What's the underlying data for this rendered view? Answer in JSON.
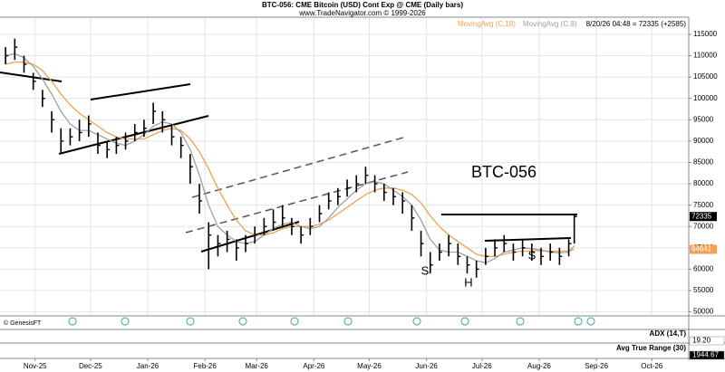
{
  "chart_data": {
    "type": "ohlc",
    "title": "BTC-056:  CME Bitcoin (USD) Cont Exp @ CME  (Daily bars)",
    "subtitle": "www.TradeNavigator.com © 1999-2026",
    "quote": "8/20/26 04:48 = 72335 (+2585)",
    "last_price": 72335,
    "color": "#000000",
    "xlim": [
      12,
      385
    ],
    "xticks": [
      {
        "value": 31,
        "label": "Nov-25"
      },
      {
        "value": 61,
        "label": "Dec-25"
      },
      {
        "value": 92,
        "label": "Jan-26"
      },
      {
        "value": 123,
        "label": "Feb-26"
      },
      {
        "value": 151,
        "label": "Mar-26"
      },
      {
        "value": 182,
        "label": "Apr-26"
      },
      {
        "value": 212,
        "label": "May-26"
      },
      {
        "value": 243,
        "label": "Jun-26"
      },
      {
        "value": 273,
        "label": "Jul-26"
      },
      {
        "value": 304,
        "label": "Aug-26"
      },
      {
        "value": 335,
        "label": "Sep-26"
      },
      {
        "value": 365,
        "label": "Oct-26"
      }
    ],
    "ylim": [
      49000,
      119000
    ],
    "yticks": [
      115000,
      110000,
      105000,
      100000,
      95000,
      90000,
      85000,
      80000,
      75000,
      70000,
      65000,
      60000,
      55000,
      50000
    ],
    "grid": true,
    "x": [
      15,
      20,
      25,
      30,
      35,
      40,
      45,
      50,
      55,
      60,
      65,
      70,
      75,
      80,
      85,
      90,
      95,
      100,
      105,
      110,
      115,
      120,
      125,
      130,
      135,
      140,
      145,
      150,
      155,
      160,
      165,
      170,
      175,
      180,
      185,
      190,
      195,
      200,
      205,
      210,
      215,
      220,
      225,
      230,
      235,
      240,
      245,
      250,
      255,
      260,
      265,
      270,
      275,
      280,
      285,
      290,
      295,
      300,
      305,
      310,
      315,
      320,
      323
    ],
    "high": [
      112000,
      114000,
      110000,
      106000,
      102000,
      97000,
      93000,
      93000,
      95000,
      96000,
      92000,
      90000,
      91000,
      92000,
      94000,
      95000,
      99000,
      97000,
      94000,
      91000,
      87000,
      80000,
      71000,
      68000,
      69000,
      67000,
      68000,
      70000,
      72000,
      74000,
      75000,
      72000,
      70000,
      72000,
      75000,
      78000,
      79000,
      81000,
      82000,
      84000,
      82000,
      80000,
      79000,
      78000,
      75000,
      69000,
      64000,
      66000,
      68000,
      66000,
      63000,
      62000,
      65000,
      67000,
      68000,
      66000,
      67000,
      66000,
      65000,
      66000,
      65000,
      67000,
      73000
    ],
    "low": [
      108000,
      109000,
      106000,
      102000,
      98000,
      92000,
      87000,
      89000,
      90000,
      91000,
      87000,
      86000,
      87000,
      88000,
      90000,
      91000,
      94000,
      92000,
      89000,
      86000,
      80000,
      73000,
      60000,
      63000,
      64000,
      62000,
      64000,
      66000,
      68000,
      69000,
      70000,
      68000,
      66000,
      68000,
      71000,
      74000,
      75000,
      77000,
      78000,
      80000,
      78000,
      76000,
      75000,
      73000,
      69000,
      63000,
      59000,
      62000,
      63000,
      61000,
      59000,
      58000,
      61000,
      63000,
      64000,
      62000,
      63000,
      62000,
      61000,
      62000,
      61000,
      63000,
      66000
    ],
    "close": [
      110000,
      112000,
      108000,
      104000,
      100000,
      95000,
      90000,
      91000,
      92000,
      94000,
      89000,
      88000,
      89000,
      90000,
      92000,
      93000,
      97000,
      95000,
      91000,
      89000,
      84000,
      76000,
      68000,
      66000,
      67000,
      65000,
      66000,
      68000,
      70000,
      71000,
      72000,
      70000,
      68000,
      70000,
      73000,
      76000,
      77000,
      79000,
      80000,
      82000,
      80000,
      78000,
      77000,
      76000,
      72000,
      66000,
      61000,
      64000,
      66000,
      63000,
      61000,
      60000,
      63000,
      65000,
      66000,
      64000,
      65000,
      64000,
      63000,
      64000,
      63000,
      66000,
      72335
    ],
    "series": [
      {
        "name": "MovingAvg (C,18)",
        "color": "#f0a050",
        "last": 64641,
        "values": [
          108000,
          108500,
          108500,
          108000,
          106500,
          104000,
          101000,
          98500,
          96500,
          95000,
          93500,
          92000,
          91000,
          90500,
          90500,
          90500,
          91500,
          92500,
          93000,
          92500,
          90500,
          87500,
          83500,
          79000,
          75000,
          71500,
          69000,
          68000,
          68000,
          68500,
          69500,
          70000,
          70000,
          70000,
          70500,
          71500,
          73000,
          74500,
          76000,
          77500,
          78500,
          79000,
          79000,
          78500,
          77500,
          75500,
          72500,
          70000,
          68000,
          66500,
          65000,
          63500,
          63000,
          63000,
          63500,
          64000,
          64200,
          64300,
          64300,
          64200,
          64200,
          64300,
          64641
        ]
      },
      {
        "name": "MovingAvg (C,8)",
        "color": "#a0a0a0",
        "values": [
          110000,
          110500,
          109500,
          107500,
          104500,
          101000,
          97000,
          94000,
          92500,
          92500,
          91500,
          90500,
          89500,
          89000,
          90000,
          91500,
          93500,
          94500,
          94000,
          92000,
          88000,
          82000,
          75000,
          70000,
          68000,
          66500,
          66000,
          66500,
          68000,
          69500,
          70500,
          71000,
          70000,
          69500,
          70000,
          72000,
          74500,
          76500,
          78500,
          80000,
          80500,
          80000,
          78500,
          77000,
          75000,
          71500,
          67000,
          64500,
          64000,
          64000,
          63000,
          62000,
          61500,
          62500,
          64000,
          64500,
          65000,
          64800,
          64500,
          64000,
          63800,
          64000,
          65500
        ]
      }
    ],
    "annotations": {
      "symbol": "BTC-056",
      "left_shoulder": "S",
      "head": "H",
      "right_shoulder": "S",
      "source": "© GenesisFT"
    },
    "panels": [
      {
        "name": "ADX (14,T)",
        "last_label": "19.20"
      },
      {
        "name": "Avg True Range (30)",
        "last_label": "1944.67"
      }
    ]
  }
}
